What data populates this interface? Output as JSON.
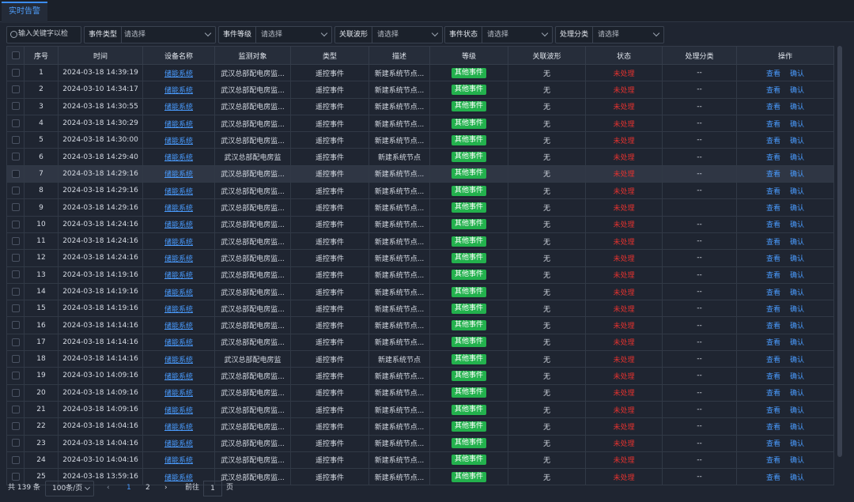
{
  "tab": {
    "label": "实时告警"
  },
  "filters": {
    "search_placeholder": "输入关键字以检",
    "groups": [
      {
        "label": "事件类型",
        "value": "请选择"
      },
      {
        "label": "事件等级",
        "value": "请选择"
      },
      {
        "label": "关联波形",
        "value": "请选择"
      },
      {
        "label": "事件状态",
        "value": "请选择"
      },
      {
        "label": "处理分类",
        "value": "请选择"
      }
    ]
  },
  "table": {
    "columns": [
      "序号",
      "时间",
      "设备名称",
      "监测对象",
      "类型",
      "描述",
      "等级",
      "关联波形",
      "状态",
      "处理分类",
      "操作"
    ],
    "op_labels": [
      "查看",
      "确认"
    ],
    "rows": [
      {
        "no": "1",
        "time": "2024-03-18 14:39:19",
        "device": "储能系统",
        "object": "武汉总部配电房监...",
        "type": "遥控事件",
        "desc": "新建系统节点...",
        "level": "其他事件",
        "wave": "无",
        "status": "未处理",
        "category": "--"
      },
      {
        "no": "2",
        "time": "2024-03-10 14:34:17",
        "device": "储能系统",
        "object": "武汉总部配电房监...",
        "type": "遥控事件",
        "desc": "新建系统节点...",
        "level": "其他事件",
        "wave": "无",
        "status": "未处理",
        "category": "--"
      },
      {
        "no": "3",
        "time": "2024-03-18 14:30:55",
        "device": "储能系统",
        "object": "武汉总部配电房监...",
        "type": "遥控事件",
        "desc": "新建系统节点...",
        "level": "其他事件",
        "wave": "无",
        "status": "未处理",
        "category": "--"
      },
      {
        "no": "4",
        "time": "2024-03-18 14:30:29",
        "device": "储能系统",
        "object": "武汉总部配电房监...",
        "type": "遥控事件",
        "desc": "新建系统节点...",
        "level": "其他事件",
        "wave": "无",
        "status": "未处理",
        "category": "--"
      },
      {
        "no": "5",
        "time": "2024-03-18 14:30:00",
        "device": "储能系统",
        "object": "武汉总部配电房监...",
        "type": "遥控事件",
        "desc": "新建系统节点...",
        "level": "其他事件",
        "wave": "无",
        "status": "未处理",
        "category": "--"
      },
      {
        "no": "6",
        "time": "2024-03-18 14:29:40",
        "device": "储能系统",
        "object": "武汉总部配电房监",
        "type": "遥控事件",
        "desc": "新建系统节点",
        "level": "其他事件",
        "wave": "无",
        "status": "未处理",
        "category": "--"
      },
      {
        "no": "7",
        "time": "2024-03-18 14:29:16",
        "device": "储能系统",
        "object": "武汉总部配电房监...",
        "type": "遥控事件",
        "desc": "新建系统节点...",
        "level": "其他事件",
        "wave": "无",
        "status": "未处理",
        "category": "--"
      },
      {
        "no": "8",
        "time": "2024-03-18 14:29:16",
        "device": "储能系统",
        "object": "武汉总部配电房监...",
        "type": "遥控事件",
        "desc": "新建系统节点...",
        "level": "其他事件",
        "wave": "无",
        "status": "未处理",
        "category": "--"
      },
      {
        "no": "9",
        "time": "2024-03-18 14:29:16",
        "device": "储能系统",
        "object": "武汉总部配电房监...",
        "type": "遥控事件",
        "desc": "新建系统节点...",
        "level": "其他事件",
        "wave": "无",
        "status": "未处理",
        "category": ""
      },
      {
        "no": "10",
        "time": "2024-03-18 14:24:16",
        "device": "储能系统",
        "object": "武汉总部配电房监...",
        "type": "遥控事件",
        "desc": "新建系统节点...",
        "level": "其他事件",
        "wave": "无",
        "status": "未处理",
        "category": "--"
      },
      {
        "no": "11",
        "time": "2024-03-18 14:24:16",
        "device": "储能系统",
        "object": "武汉总部配电房监...",
        "type": "遥控事件",
        "desc": "新建系统节点...",
        "level": "其他事件",
        "wave": "无",
        "status": "未处理",
        "category": "--"
      },
      {
        "no": "12",
        "time": "2024-03-18 14:24:16",
        "device": "储能系统",
        "object": "武汉总部配电房监...",
        "type": "遥控事件",
        "desc": "新建系统节点...",
        "level": "其他事件",
        "wave": "无",
        "status": "未处理",
        "category": "--"
      },
      {
        "no": "13",
        "time": "2024-03-18 14:19:16",
        "device": "储能系统",
        "object": "武汉总部配电房监...",
        "type": "遥控事件",
        "desc": "新建系统节点...",
        "level": "其他事件",
        "wave": "无",
        "status": "未处理",
        "category": "--"
      },
      {
        "no": "14",
        "time": "2024-03-18 14:19:16",
        "device": "储能系统",
        "object": "武汉总部配电房监...",
        "type": "遥控事件",
        "desc": "新建系统节点...",
        "level": "其他事件",
        "wave": "无",
        "status": "未处理",
        "category": "--"
      },
      {
        "no": "15",
        "time": "2024-03-18 14:19:16",
        "device": "储能系统",
        "object": "武汉总部配电房监...",
        "type": "遥控事件",
        "desc": "新建系统节点...",
        "level": "其他事件",
        "wave": "无",
        "status": "未处理",
        "category": "--"
      },
      {
        "no": "16",
        "time": "2024-03-18 14:14:16",
        "device": "储能系统",
        "object": "武汉总部配电房监...",
        "type": "遥控事件",
        "desc": "新建系统节点...",
        "level": "其他事件",
        "wave": "无",
        "status": "未处理",
        "category": "--"
      },
      {
        "no": "17",
        "time": "2024-03-18 14:14:16",
        "device": "储能系统",
        "object": "武汉总部配电房监...",
        "type": "遥控事件",
        "desc": "新建系统节点...",
        "level": "其他事件",
        "wave": "无",
        "status": "未处理",
        "category": "--"
      },
      {
        "no": "18",
        "time": "2024-03-18 14:14:16",
        "device": "储能系统",
        "object": "武汉总部配电房监",
        "type": "遥控事件",
        "desc": "新建系统节点",
        "level": "其他事件",
        "wave": "无",
        "status": "未处理",
        "category": "--"
      },
      {
        "no": "19",
        "time": "2024-03-10 14:09:16",
        "device": "储能系统",
        "object": "武汉总部配电房监...",
        "type": "遥控事件",
        "desc": "新建系统节点...",
        "level": "其他事件",
        "wave": "无",
        "status": "未处理",
        "category": "--"
      },
      {
        "no": "20",
        "time": "2024-03-18 14:09:16",
        "device": "储能系统",
        "object": "武汉总部配电房监...",
        "type": "遥控事件",
        "desc": "新建系统节点...",
        "level": "其他事件",
        "wave": "无",
        "status": "未处理",
        "category": "--"
      },
      {
        "no": "21",
        "time": "2024-03-18 14:09:16",
        "device": "储能系统",
        "object": "武汉总部配电房监...",
        "type": "遥控事件",
        "desc": "新建系统节点...",
        "level": "其他事件",
        "wave": "无",
        "status": "未处理",
        "category": "--"
      },
      {
        "no": "22",
        "time": "2024-03-18 14:04:16",
        "device": "储能系统",
        "object": "武汉总部配电房监...",
        "type": "遥控事件",
        "desc": "新建系统节点...",
        "level": "其他事件",
        "wave": "无",
        "status": "未处理",
        "category": "--"
      },
      {
        "no": "23",
        "time": "2024-03-18 14:04:16",
        "device": "储能系统",
        "object": "武汉总部配电房监...",
        "type": "遥控事件",
        "desc": "新建系统节点...",
        "level": "其他事件",
        "wave": "无",
        "status": "未处理",
        "category": "--"
      },
      {
        "no": "24",
        "time": "2024-03-10 14:04:16",
        "device": "储能系统",
        "object": "武汉总部配电房监...",
        "type": "遥控事件",
        "desc": "新建系统节点...",
        "level": "其他事件",
        "wave": "无",
        "status": "未处理",
        "category": "--"
      },
      {
        "no": "25",
        "time": "2024-03-18 13:59:16",
        "device": "储能系统",
        "object": "武汉总部配电房监...",
        "type": "遥控事件",
        "desc": "新建系统节点...",
        "level": "其他事件",
        "wave": "无",
        "status": "未处理",
        "category": "--"
      }
    ],
    "highlighted_row": "7"
  },
  "pagination": {
    "total": "共 139 条",
    "page_size": "100条/页",
    "pages": [
      "1",
      "2"
    ],
    "current_page": "1",
    "goto_label": "前往",
    "goto_value": "1",
    "page_suffix": "页"
  },
  "colors": {
    "accent": "#4a9cff",
    "badge_green": "#23b14d",
    "status_red": "#e2322f",
    "background": "#1f2531"
  }
}
